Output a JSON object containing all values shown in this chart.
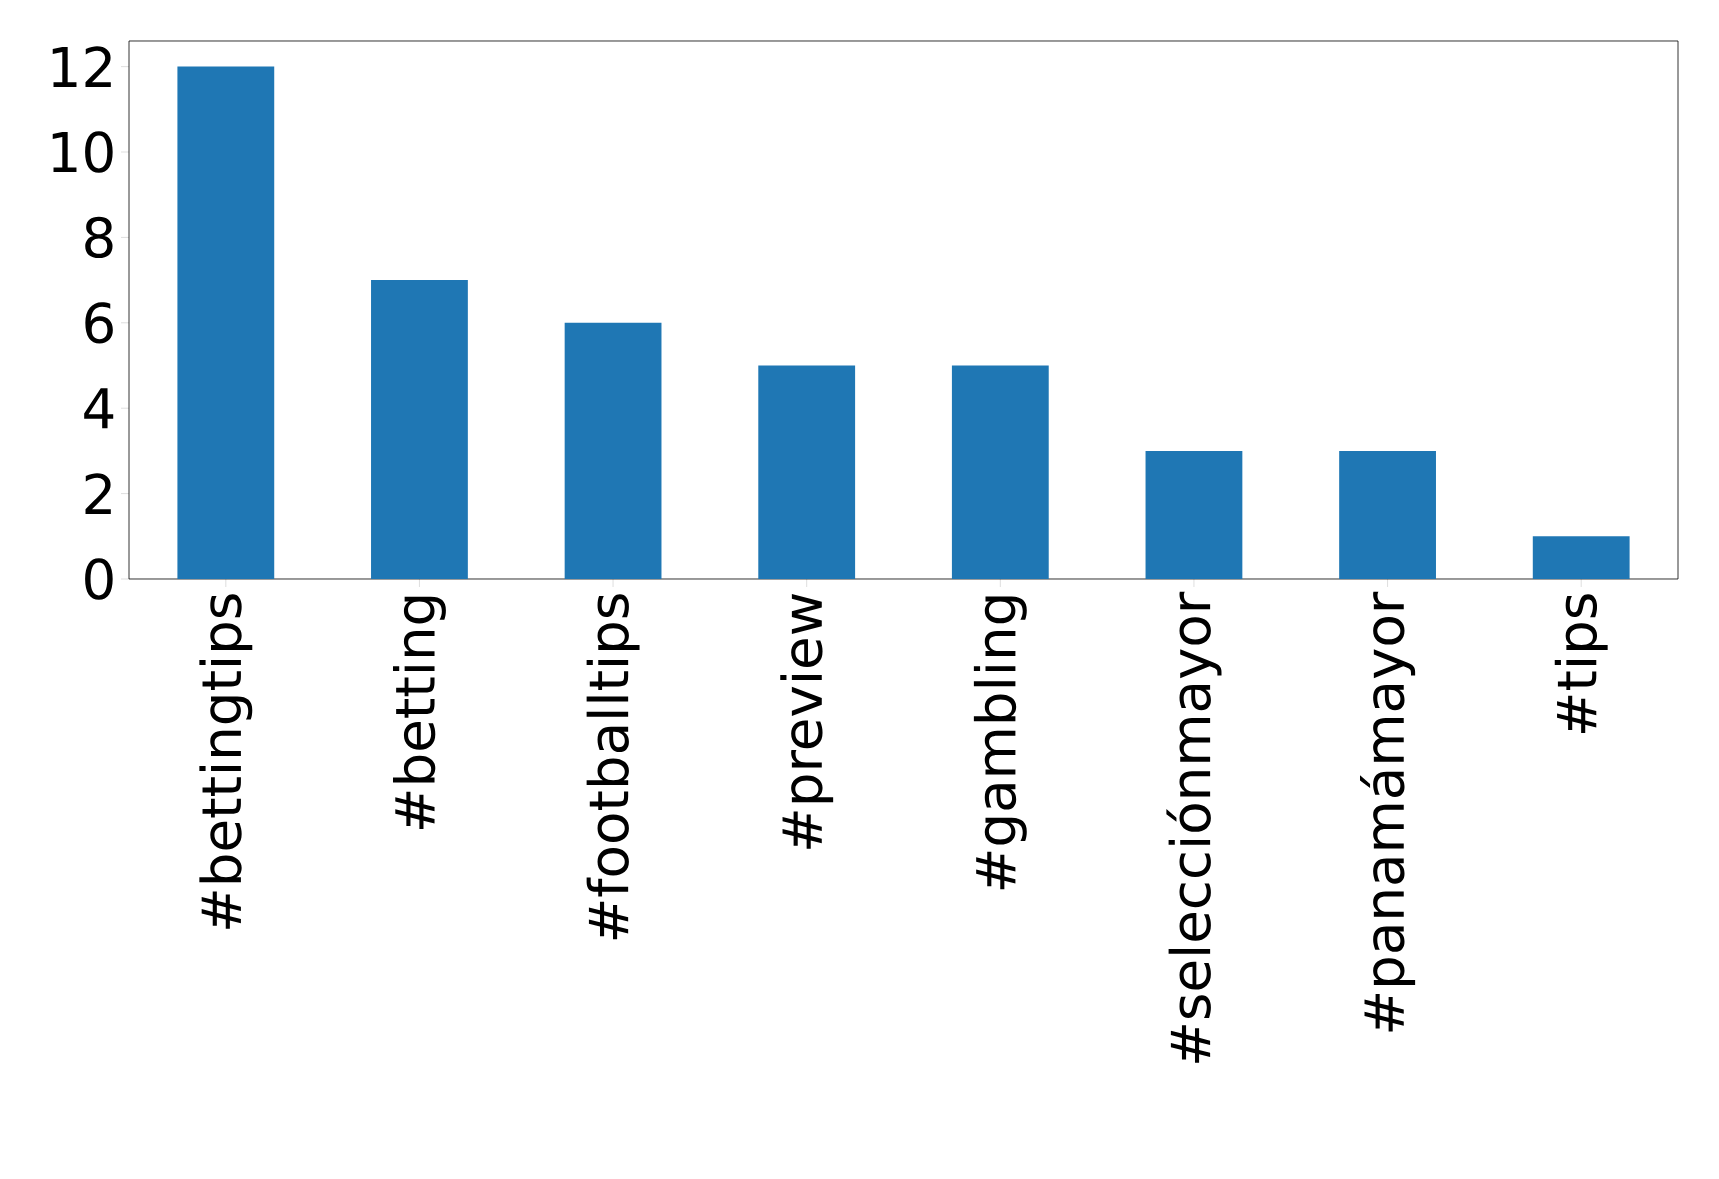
{
  "chart_data": {
    "type": "bar",
    "categories": [
      "#bettingtips",
      "#betting",
      "#footballtips",
      "#preview",
      "#gambling",
      "#selecciónmayor",
      "#panamámayor",
      "#tips"
    ],
    "values": [
      12,
      7,
      6,
      5,
      5,
      3,
      3,
      1
    ],
    "color": "#1f77b4",
    "ylim": [
      0,
      12.6
    ],
    "yticks": [
      0,
      2,
      4,
      6,
      8,
      10,
      12
    ],
    "grid": false
  }
}
